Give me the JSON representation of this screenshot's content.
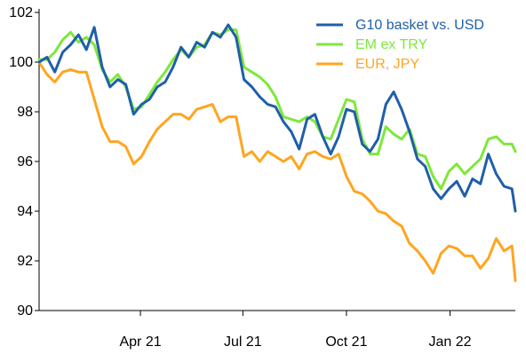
{
  "chart_data": {
    "type": "line",
    "title": "",
    "xlabel": "",
    "ylabel": "",
    "ylim": [
      90,
      102
    ],
    "yticks": [
      90,
      92,
      94,
      96,
      98,
      100,
      102
    ],
    "x_range": [
      "2021-01-01",
      "2022-02-28"
    ],
    "xticks": [
      {
        "date": "2021-04-01",
        "label": "Apr 21"
      },
      {
        "date": "2021-07-01",
        "label": "Jul 21"
      },
      {
        "date": "2021-10-01",
        "label": "Oct 21"
      },
      {
        "date": "2022-01-01",
        "label": "Jan 22"
      }
    ],
    "grid": false,
    "legend_position": "top-right",
    "series": [
      {
        "name": "G10 basket vs. USD",
        "color": "#1f5fa8",
        "points": [
          [
            "2021-01-01",
            100.0
          ],
          [
            "2021-01-08",
            100.2
          ],
          [
            "2021-01-15",
            99.6
          ],
          [
            "2021-01-22",
            100.4
          ],
          [
            "2021-01-29",
            100.7
          ],
          [
            "2021-02-05",
            101.1
          ],
          [
            "2021-02-12",
            100.5
          ],
          [
            "2021-02-19",
            101.4
          ],
          [
            "2021-02-26",
            99.8
          ],
          [
            "2021-03-05",
            99.0
          ],
          [
            "2021-03-12",
            99.3
          ],
          [
            "2021-03-19",
            99.1
          ],
          [
            "2021-03-26",
            97.9
          ],
          [
            "2021-04-02",
            98.3
          ],
          [
            "2021-04-09",
            98.5
          ],
          [
            "2021-04-16",
            99.0
          ],
          [
            "2021-04-23",
            99.2
          ],
          [
            "2021-04-30",
            99.8
          ],
          [
            "2021-05-07",
            100.6
          ],
          [
            "2021-05-14",
            100.2
          ],
          [
            "2021-05-21",
            100.8
          ],
          [
            "2021-05-28",
            100.6
          ],
          [
            "2021-06-04",
            101.2
          ],
          [
            "2021-06-11",
            101.0
          ],
          [
            "2021-06-18",
            101.5
          ],
          [
            "2021-06-25",
            101.0
          ],
          [
            "2021-07-02",
            99.3
          ],
          [
            "2021-07-09",
            99.0
          ],
          [
            "2021-07-16",
            98.6
          ],
          [
            "2021-07-23",
            98.3
          ],
          [
            "2021-07-30",
            98.2
          ],
          [
            "2021-08-06",
            97.6
          ],
          [
            "2021-08-13",
            97.2
          ],
          [
            "2021-08-20",
            96.5
          ],
          [
            "2021-08-27",
            97.7
          ],
          [
            "2021-09-03",
            97.9
          ],
          [
            "2021-09-10",
            97.0
          ],
          [
            "2021-09-17",
            96.3
          ],
          [
            "2021-09-24",
            97.0
          ],
          [
            "2021-10-01",
            98.1
          ],
          [
            "2021-10-08",
            98.0
          ],
          [
            "2021-10-15",
            96.7
          ],
          [
            "2021-10-22",
            96.4
          ],
          [
            "2021-10-29",
            96.9
          ],
          [
            "2021-11-05",
            98.3
          ],
          [
            "2021-11-12",
            98.8
          ],
          [
            "2021-11-19",
            98.1
          ],
          [
            "2021-11-26",
            97.2
          ],
          [
            "2021-12-03",
            96.1
          ],
          [
            "2021-12-10",
            95.8
          ],
          [
            "2021-12-17",
            94.9
          ],
          [
            "2021-12-24",
            94.5
          ],
          [
            "2021-12-31",
            94.9
          ],
          [
            "2022-01-07",
            95.2
          ],
          [
            "2022-01-14",
            94.6
          ],
          [
            "2022-01-21",
            95.3
          ],
          [
            "2022-01-28",
            95.1
          ],
          [
            "2022-02-04",
            96.3
          ],
          [
            "2022-02-11",
            95.5
          ],
          [
            "2022-02-18",
            95.0
          ],
          [
            "2022-02-25",
            94.9
          ],
          [
            "2022-02-28",
            94.0
          ]
        ]
      },
      {
        "name": "EM ex TRY",
        "color": "#7ee83a",
        "points": [
          [
            "2021-01-01",
            100.1
          ],
          [
            "2021-01-08",
            100.1
          ],
          [
            "2021-01-15",
            100.4
          ],
          [
            "2021-01-22",
            100.9
          ],
          [
            "2021-01-29",
            101.2
          ],
          [
            "2021-02-05",
            100.8
          ],
          [
            "2021-02-12",
            101.0
          ],
          [
            "2021-02-19",
            100.7
          ],
          [
            "2021-02-26",
            99.7
          ],
          [
            "2021-03-05",
            99.2
          ],
          [
            "2021-03-12",
            99.5
          ],
          [
            "2021-03-19",
            99.0
          ],
          [
            "2021-03-26",
            98.1
          ],
          [
            "2021-04-02",
            98.2
          ],
          [
            "2021-04-09",
            98.7
          ],
          [
            "2021-04-16",
            99.2
          ],
          [
            "2021-04-23",
            99.6
          ],
          [
            "2021-04-30",
            100.1
          ],
          [
            "2021-05-07",
            100.5
          ],
          [
            "2021-05-14",
            100.2
          ],
          [
            "2021-05-21",
            100.6
          ],
          [
            "2021-05-28",
            100.7
          ],
          [
            "2021-06-04",
            101.2
          ],
          [
            "2021-06-11",
            101.1
          ],
          [
            "2021-06-18",
            101.3
          ],
          [
            "2021-06-25",
            101.3
          ],
          [
            "2021-07-02",
            99.8
          ],
          [
            "2021-07-09",
            99.6
          ],
          [
            "2021-07-16",
            99.4
          ],
          [
            "2021-07-23",
            99.1
          ],
          [
            "2021-07-30",
            98.6
          ],
          [
            "2021-08-06",
            97.8
          ],
          [
            "2021-08-13",
            97.7
          ],
          [
            "2021-08-20",
            97.6
          ],
          [
            "2021-08-27",
            97.8
          ],
          [
            "2021-09-03",
            97.6
          ],
          [
            "2021-09-10",
            97.0
          ],
          [
            "2021-09-17",
            96.9
          ],
          [
            "2021-09-24",
            97.7
          ],
          [
            "2021-10-01",
            98.5
          ],
          [
            "2021-10-08",
            98.4
          ],
          [
            "2021-10-15",
            96.9
          ],
          [
            "2021-10-22",
            96.3
          ],
          [
            "2021-10-29",
            96.3
          ],
          [
            "2021-11-05",
            97.4
          ],
          [
            "2021-11-12",
            97.1
          ],
          [
            "2021-11-19",
            96.9
          ],
          [
            "2021-11-26",
            97.3
          ],
          [
            "2021-12-03",
            96.3
          ],
          [
            "2021-12-10",
            96.2
          ],
          [
            "2021-12-17",
            95.4
          ],
          [
            "2021-12-24",
            94.9
          ],
          [
            "2021-12-31",
            95.6
          ],
          [
            "2022-01-07",
            95.9
          ],
          [
            "2022-01-14",
            95.5
          ],
          [
            "2022-01-21",
            95.8
          ],
          [
            "2022-01-28",
            96.1
          ],
          [
            "2022-02-04",
            96.9
          ],
          [
            "2022-02-11",
            97.0
          ],
          [
            "2022-02-18",
            96.7
          ],
          [
            "2022-02-25",
            96.7
          ],
          [
            "2022-02-28",
            96.4
          ]
        ]
      },
      {
        "name": "EUR, JPY",
        "color": "#ffa51f",
        "points": [
          [
            "2021-01-01",
            100.0
          ],
          [
            "2021-01-08",
            99.5
          ],
          [
            "2021-01-15",
            99.2
          ],
          [
            "2021-01-22",
            99.6
          ],
          [
            "2021-01-29",
            99.7
          ],
          [
            "2021-02-05",
            99.6
          ],
          [
            "2021-02-12",
            99.6
          ],
          [
            "2021-02-19",
            98.5
          ],
          [
            "2021-02-26",
            97.4
          ],
          [
            "2021-03-05",
            96.8
          ],
          [
            "2021-03-12",
            96.8
          ],
          [
            "2021-03-19",
            96.6
          ],
          [
            "2021-03-26",
            95.9
          ],
          [
            "2021-04-02",
            96.2
          ],
          [
            "2021-04-09",
            96.8
          ],
          [
            "2021-04-16",
            97.3
          ],
          [
            "2021-04-23",
            97.6
          ],
          [
            "2021-04-30",
            97.9
          ],
          [
            "2021-05-07",
            97.9
          ],
          [
            "2021-05-14",
            97.7
          ],
          [
            "2021-05-21",
            98.1
          ],
          [
            "2021-05-28",
            98.2
          ],
          [
            "2021-06-04",
            98.3
          ],
          [
            "2021-06-11",
            97.6
          ],
          [
            "2021-06-18",
            97.8
          ],
          [
            "2021-06-25",
            97.8
          ],
          [
            "2021-07-02",
            96.2
          ],
          [
            "2021-07-09",
            96.4
          ],
          [
            "2021-07-16",
            96.0
          ],
          [
            "2021-07-23",
            96.4
          ],
          [
            "2021-07-30",
            96.2
          ],
          [
            "2021-08-06",
            96.0
          ],
          [
            "2021-08-13",
            96.2
          ],
          [
            "2021-08-20",
            95.7
          ],
          [
            "2021-08-27",
            96.3
          ],
          [
            "2021-09-03",
            96.4
          ],
          [
            "2021-09-10",
            96.2
          ],
          [
            "2021-09-17",
            96.1
          ],
          [
            "2021-09-24",
            96.3
          ],
          [
            "2021-10-01",
            95.4
          ],
          [
            "2021-10-08",
            94.8
          ],
          [
            "2021-10-15",
            94.7
          ],
          [
            "2021-10-22",
            94.4
          ],
          [
            "2021-10-29",
            94.0
          ],
          [
            "2021-11-05",
            93.9
          ],
          [
            "2021-11-12",
            93.6
          ],
          [
            "2021-11-19",
            93.4
          ],
          [
            "2021-11-26",
            92.7
          ],
          [
            "2021-12-03",
            92.4
          ],
          [
            "2021-12-10",
            92.0
          ],
          [
            "2021-12-17",
            91.5
          ],
          [
            "2021-12-24",
            92.3
          ],
          [
            "2021-12-31",
            92.6
          ],
          [
            "2022-01-07",
            92.5
          ],
          [
            "2022-01-14",
            92.2
          ],
          [
            "2022-01-21",
            92.2
          ],
          [
            "2022-01-28",
            91.7
          ],
          [
            "2022-02-04",
            92.1
          ],
          [
            "2022-02-11",
            92.9
          ],
          [
            "2022-02-18",
            92.4
          ],
          [
            "2022-02-25",
            92.6
          ],
          [
            "2022-02-28",
            91.2
          ]
        ]
      }
    ]
  }
}
